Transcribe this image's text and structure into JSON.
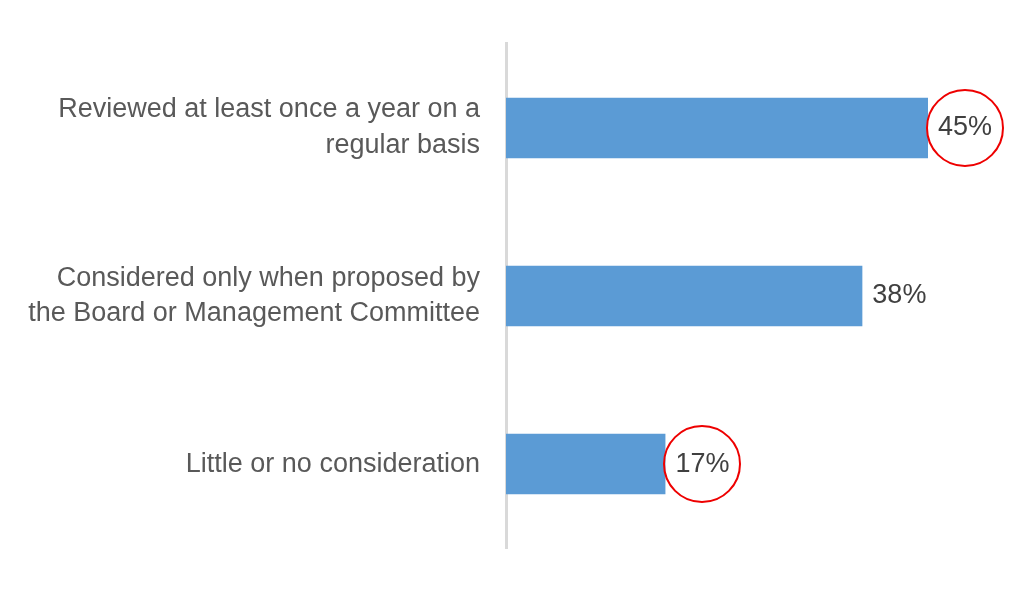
{
  "chart_data": {
    "type": "bar",
    "orientation": "horizontal",
    "categories": [
      "Reviewed at least once a year on a regular basis",
      "Considered only when proposed by the Board or Management Committee",
      "Little or no consideration"
    ],
    "values": [
      45,
      38,
      17
    ],
    "value_labels": [
      "45%",
      "38%",
      "17%"
    ],
    "color": "#5b9bd5",
    "tick_labels": "y",
    "grid": false,
    "legend": false
  }
}
